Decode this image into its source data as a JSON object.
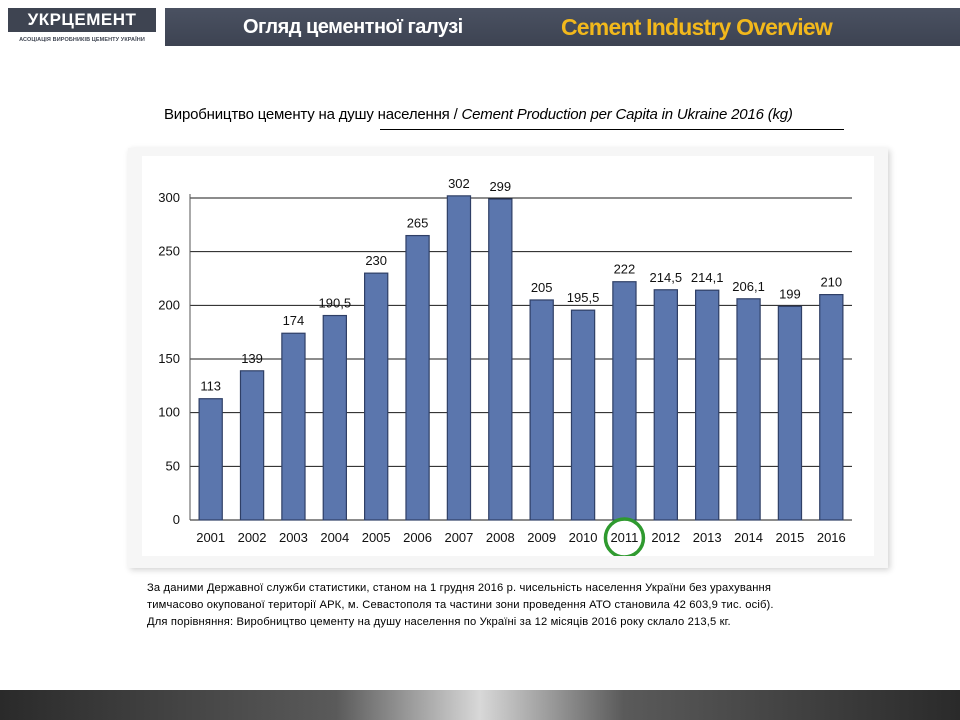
{
  "logo": {
    "name": "УКРЦЕМЕНТ",
    "subtitle": "АСОЦІАЦІЯ ВИРОБНИКІВ ЦЕМЕНТУ УКРАЇНИ"
  },
  "header": {
    "title_ua": "Огляд цементної галузі",
    "title_en": "Cement Industry Overview"
  },
  "chart_heading": {
    "ua": "Виробництво цементу на душу населення /",
    "en": " Cement Production  per Capita in Ukraine 2016 (kg)"
  },
  "chart_data": {
    "type": "bar",
    "categories": [
      "2001",
      "2002",
      "2003",
      "2004",
      "2005",
      "2006",
      "2007",
      "2008",
      "2009",
      "2010",
      "2011",
      "2012",
      "2013",
      "2014",
      "2015",
      "2016"
    ],
    "values": [
      113,
      139,
      174,
      190.5,
      230,
      265,
      302,
      299,
      205,
      195.5,
      222,
      214.5,
      214.1,
      206.1,
      199,
      210
    ],
    "value_labels": [
      "113",
      "139",
      "174",
      "190,5",
      "230",
      "265",
      "302",
      "299",
      "205",
      "195,5",
      "222",
      "214,5",
      "214,1",
      "206,1",
      "199",
      "210"
    ],
    "ylim": [
      0,
      300
    ],
    "yticks": [
      0,
      50,
      100,
      150,
      200,
      250,
      300
    ],
    "grid": true,
    "highlighted_category": "2011",
    "colors": {
      "bar": "#5b76ad",
      "bar_edge": "#2f3f66",
      "highlight_ring": "#2f9a2f",
      "grid": "#1a1a1a"
    }
  },
  "note": {
    "line1": "За даними Державної служби статистики, станом на 1 грудня 2016 р. чисельність населення  України без урахування",
    "line2": "тимчасово окупованої території АРК, м. Севастополя та частини зони проведення АТО становила 42 603,9 тис. осіб).",
    "line3": "Для порівняння: Виробництво цементу на душу населення по Україні  за 12 місяців 2016 року склало 213,5 кг."
  }
}
